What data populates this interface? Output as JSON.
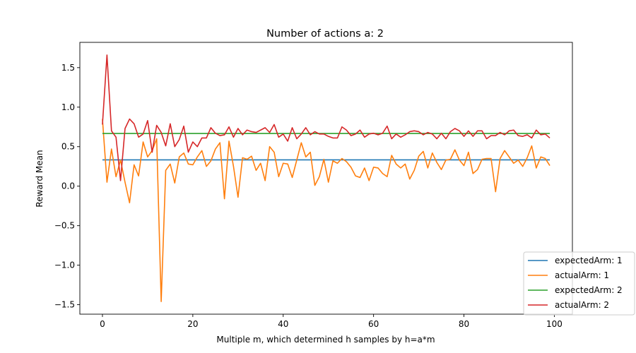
{
  "chart_data": {
    "type": "line",
    "title": "Number of actions a: 2",
    "xlabel": "Multiple m, which determined h samples by h=a*m",
    "ylabel": "Reward Mean",
    "xlim": [
      -5,
      104
    ],
    "ylim": [
      -1.62,
      1.82
    ],
    "xticks": [
      0,
      20,
      40,
      60,
      80,
      100
    ],
    "yticks": [
      -1.5,
      -1.0,
      -0.5,
      0.0,
      0.5,
      1.0,
      1.5
    ],
    "xtick_labels": [
      "0",
      "20",
      "40",
      "60",
      "80",
      "100"
    ],
    "ytick_labels": [
      "−1.5",
      "−1.0",
      "−0.5",
      "0.0",
      "0.5",
      "1.0",
      "1.5"
    ],
    "grid": false,
    "legend_position": "bottom-right",
    "x": [
      0,
      1,
      2,
      3,
      4,
      5,
      6,
      7,
      8,
      9,
      10,
      11,
      12,
      13,
      14,
      15,
      16,
      17,
      18,
      19,
      20,
      21,
      22,
      23,
      24,
      25,
      26,
      27,
      28,
      29,
      30,
      31,
      32,
      33,
      34,
      35,
      36,
      37,
      38,
      39,
      40,
      41,
      42,
      43,
      44,
      45,
      46,
      47,
      48,
      49,
      50,
      51,
      52,
      53,
      54,
      55,
      56,
      57,
      58,
      59,
      60,
      61,
      62,
      63,
      64,
      65,
      66,
      67,
      68,
      69,
      70,
      71,
      72,
      73,
      74,
      75,
      76,
      77,
      78,
      79,
      80,
      81,
      82,
      83,
      84,
      85,
      86,
      87,
      88,
      89,
      90,
      91,
      92,
      93,
      94,
      95,
      96,
      97,
      98,
      99
    ],
    "series": [
      {
        "name": "expectedArm: 1",
        "color": "#1f77b4",
        "values": [
          0.333,
          0.333,
          0.333,
          0.333,
          0.333,
          0.333,
          0.333,
          0.333,
          0.333,
          0.333,
          0.333,
          0.333,
          0.333,
          0.333,
          0.333,
          0.333,
          0.333,
          0.333,
          0.333,
          0.333,
          0.333,
          0.333,
          0.333,
          0.333,
          0.333,
          0.333,
          0.333,
          0.333,
          0.333,
          0.333,
          0.333,
          0.333,
          0.333,
          0.333,
          0.333,
          0.333,
          0.333,
          0.333,
          0.333,
          0.333,
          0.333,
          0.333,
          0.333,
          0.333,
          0.333,
          0.333,
          0.333,
          0.333,
          0.333,
          0.333,
          0.333,
          0.333,
          0.333,
          0.333,
          0.333,
          0.333,
          0.333,
          0.333,
          0.333,
          0.333,
          0.333,
          0.333,
          0.333,
          0.333,
          0.333,
          0.333,
          0.333,
          0.333,
          0.333,
          0.333,
          0.333,
          0.333,
          0.333,
          0.333,
          0.333,
          0.333,
          0.333,
          0.333,
          0.333,
          0.333,
          0.333,
          0.333,
          0.333,
          0.333,
          0.333,
          0.333,
          0.333,
          0.333,
          0.333,
          0.333,
          0.333,
          0.333,
          0.333,
          0.333,
          0.333,
          0.333,
          0.333,
          0.333,
          0.333,
          0.333
        ]
      },
      {
        "name": "actualArm: 1",
        "color": "#ff7f0e",
        "values": [
          0.85,
          0.05,
          0.47,
          0.12,
          0.33,
          0.05,
          -0.21,
          0.27,
          0.13,
          0.56,
          0.37,
          0.45,
          0.6,
          -1.46,
          0.2,
          0.28,
          0.04,
          0.37,
          0.42,
          0.28,
          0.27,
          0.37,
          0.45,
          0.25,
          0.32,
          0.47,
          0.55,
          -0.16,
          0.57,
          0.25,
          -0.14,
          0.36,
          0.34,
          0.38,
          0.2,
          0.29,
          0.07,
          0.5,
          0.43,
          0.12,
          0.29,
          0.28,
          0.11,
          0.33,
          0.55,
          0.37,
          0.43,
          0.01,
          0.12,
          0.34,
          0.05,
          0.32,
          0.29,
          0.35,
          0.31,
          0.24,
          0.13,
          0.11,
          0.23,
          0.07,
          0.24,
          0.23,
          0.16,
          0.12,
          0.39,
          0.28,
          0.23,
          0.28,
          0.09,
          0.2,
          0.38,
          0.44,
          0.23,
          0.42,
          0.3,
          0.21,
          0.33,
          0.34,
          0.46,
          0.33,
          0.26,
          0.43,
          0.16,
          0.21,
          0.34,
          0.35,
          0.35,
          -0.07,
          0.35,
          0.45,
          0.37,
          0.29,
          0.33,
          0.25,
          0.36,
          0.51,
          0.23,
          0.37,
          0.35,
          0.26
        ]
      },
      {
        "name": "expectedArm: 2",
        "color": "#2ca02c",
        "values": [
          0.667,
          0.667,
          0.667,
          0.667,
          0.667,
          0.667,
          0.667,
          0.667,
          0.667,
          0.667,
          0.667,
          0.667,
          0.667,
          0.667,
          0.667,
          0.667,
          0.667,
          0.667,
          0.667,
          0.667,
          0.667,
          0.667,
          0.667,
          0.667,
          0.667,
          0.667,
          0.667,
          0.667,
          0.667,
          0.667,
          0.667,
          0.667,
          0.667,
          0.667,
          0.667,
          0.667,
          0.667,
          0.667,
          0.667,
          0.667,
          0.667,
          0.667,
          0.667,
          0.667,
          0.667,
          0.667,
          0.667,
          0.667,
          0.667,
          0.667,
          0.667,
          0.667,
          0.667,
          0.667,
          0.667,
          0.667,
          0.667,
          0.667,
          0.667,
          0.667,
          0.667,
          0.667,
          0.667,
          0.667,
          0.667,
          0.667,
          0.667,
          0.667,
          0.667,
          0.667,
          0.667,
          0.667,
          0.667,
          0.667,
          0.667,
          0.667,
          0.667,
          0.667,
          0.667,
          0.667,
          0.667,
          0.667,
          0.667,
          0.667,
          0.667,
          0.667,
          0.667,
          0.667,
          0.667,
          0.667,
          0.667,
          0.667,
          0.667,
          0.667,
          0.667,
          0.667,
          0.667,
          0.667,
          0.667,
          0.667
        ]
      },
      {
        "name": "actualArm: 2",
        "color": "#d62728",
        "values": [
          0.78,
          1.66,
          0.7,
          0.62,
          0.07,
          0.73,
          0.85,
          0.79,
          0.62,
          0.66,
          0.83,
          0.43,
          0.77,
          0.68,
          0.51,
          0.79,
          0.5,
          0.59,
          0.76,
          0.43,
          0.56,
          0.5,
          0.61,
          0.61,
          0.74,
          0.67,
          0.64,
          0.65,
          0.75,
          0.62,
          0.73,
          0.65,
          0.71,
          0.69,
          0.68,
          0.71,
          0.74,
          0.68,
          0.78,
          0.62,
          0.66,
          0.57,
          0.74,
          0.6,
          0.66,
          0.74,
          0.65,
          0.69,
          0.66,
          0.66,
          0.63,
          0.61,
          0.61,
          0.75,
          0.71,
          0.64,
          0.66,
          0.71,
          0.62,
          0.66,
          0.67,
          0.65,
          0.67,
          0.76,
          0.6,
          0.66,
          0.62,
          0.65,
          0.69,
          0.7,
          0.69,
          0.65,
          0.68,
          0.66,
          0.6,
          0.67,
          0.6,
          0.69,
          0.73,
          0.7,
          0.63,
          0.7,
          0.63,
          0.7,
          0.7,
          0.6,
          0.64,
          0.64,
          0.68,
          0.65,
          0.7,
          0.71,
          0.64,
          0.63,
          0.65,
          0.61,
          0.71,
          0.65,
          0.66,
          0.61
        ]
      }
    ]
  }
}
